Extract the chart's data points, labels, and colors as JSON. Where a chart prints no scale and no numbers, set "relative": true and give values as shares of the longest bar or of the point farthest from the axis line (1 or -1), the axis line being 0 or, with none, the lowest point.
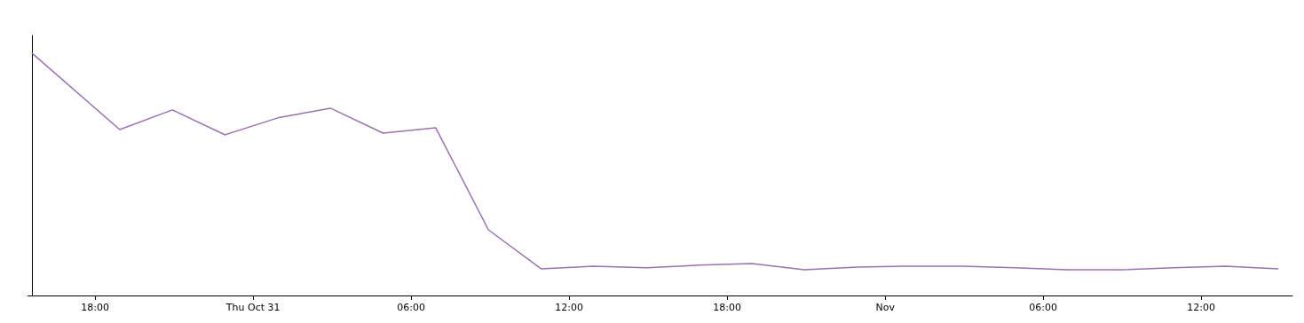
{
  "chart_data": {
    "type": "line",
    "relative": true,
    "x": [
      "--10-30T15:36",
      "--10-30T18:56",
      "--10-30T20:56",
      "--10-30T22:56",
      "--10-31T00:56",
      "--10-31T02:56",
      "--10-31T04:56",
      "--10-31T06:56",
      "--10-31T08:56",
      "--10-31T10:56",
      "--10-31T12:56",
      "--10-31T14:56",
      "--10-31T16:56",
      "--10-31T18:56",
      "--10-31T20:56",
      "--10-31T22:56",
      "--11-01T00:56",
      "--11-01T02:56",
      "--11-01T04:56",
      "--11-01T06:56",
      "--11-01T08:56",
      "--11-01T10:56",
      "--11-01T12:56",
      "--11-01T14:56"
    ],
    "series": [
      {
        "color": "#9b72b0",
        "values": [
          1.0,
          0.685,
          0.766,
          0.663,
          0.733,
          0.773,
          0.67,
          0.692,
          0.271,
          0.11,
          0.121,
          0.114,
          0.125,
          0.132,
          0.106,
          0.117,
          0.121,
          0.121,
          0.114,
          0.106,
          0.106,
          0.114,
          0.121,
          0.11
        ]
      }
    ],
    "xlim": [
      "--10-30T15:36",
      "--11-01T15:28"
    ],
    "xticks": [
      {
        "value": "--10-30T18:00",
        "label": "18:00"
      },
      {
        "value": "--10-31T00:00",
        "label": "Thu Oct 31"
      },
      {
        "value": "--10-31T06:00",
        "label": "06:00"
      },
      {
        "value": "--10-31T12:00",
        "label": "12:00"
      },
      {
        "value": "--10-31T18:00",
        "label": "18:00"
      },
      {
        "value": "--11-01T00:00",
        "label": "Nov"
      },
      {
        "value": "--11-01T06:00",
        "label": "06:00"
      },
      {
        "value": "--11-01T12:00",
        "label": "12:00"
      }
    ],
    "grid": false,
    "marker": "none",
    "line_style": "solid"
  }
}
